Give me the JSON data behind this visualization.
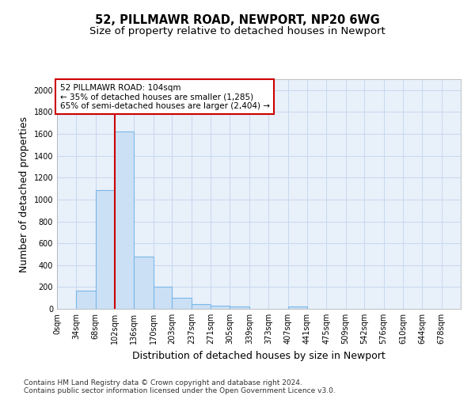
{
  "title1": "52, PILLMAWR ROAD, NEWPORT, NP20 6WG",
  "title2": "Size of property relative to detached houses in Newport",
  "xlabel": "Distribution of detached houses by size in Newport",
  "ylabel": "Number of detached properties",
  "annotation_line1": "52 PILLMAWR ROAD: 104sqm",
  "annotation_line2": "← 35% of detached houses are smaller (1,285)",
  "annotation_line3": "65% of semi-detached houses are larger (2,404) →",
  "footer1": "Contains HM Land Registry data © Crown copyright and database right 2024.",
  "footer2": "Contains public sector information licensed under the Open Government Licence v3.0.",
  "bar_left_edges": [
    0,
    34,
    68,
    102,
    136,
    170,
    203,
    237,
    271,
    305,
    339,
    373,
    407,
    441,
    475,
    509,
    542,
    576,
    610,
    644
  ],
  "bar_widths": [
    34,
    34,
    34,
    34,
    34,
    33,
    34,
    34,
    34,
    34,
    34,
    34,
    34,
    34,
    34,
    33,
    34,
    34,
    34,
    34
  ],
  "bar_heights": [
    0,
    165,
    1085,
    1625,
    480,
    200,
    100,
    45,
    30,
    20,
    0,
    0,
    20,
    0,
    0,
    0,
    0,
    0,
    0,
    0
  ],
  "bar_color": "#cce0f5",
  "bar_edgecolor": "#7ab8e8",
  "bar_linewidth": 0.8,
  "vline_x": 102,
  "vline_color": "#cc0000",
  "vline_linewidth": 1.5,
  "annotation_box_color": "#cc0000",
  "ylim": [
    0,
    2100
  ],
  "yticks": [
    0,
    200,
    400,
    600,
    800,
    1000,
    1200,
    1400,
    1600,
    1800,
    2000
  ],
  "xtick_labels": [
    "0sqm",
    "34sqm",
    "68sqm",
    "102sqm",
    "136sqm",
    "170sqm",
    "203sqm",
    "237sqm",
    "271sqm",
    "305sqm",
    "339sqm",
    "373sqm",
    "407sqm",
    "441sqm",
    "475sqm",
    "509sqm",
    "542sqm",
    "576sqm",
    "610sqm",
    "644sqm",
    "678sqm"
  ],
  "xtick_positions": [
    0,
    34,
    68,
    102,
    136,
    170,
    203,
    237,
    271,
    305,
    339,
    373,
    407,
    441,
    475,
    509,
    542,
    576,
    610,
    644,
    678
  ],
  "grid_color": "#c8d8ee",
  "bg_color": "#e8f0fa",
  "fig_bg_color": "#ffffff",
  "title_fontsize": 10.5,
  "subtitle_fontsize": 9.5,
  "axis_label_fontsize": 9,
  "tick_fontsize": 7,
  "footer_fontsize": 6.5
}
